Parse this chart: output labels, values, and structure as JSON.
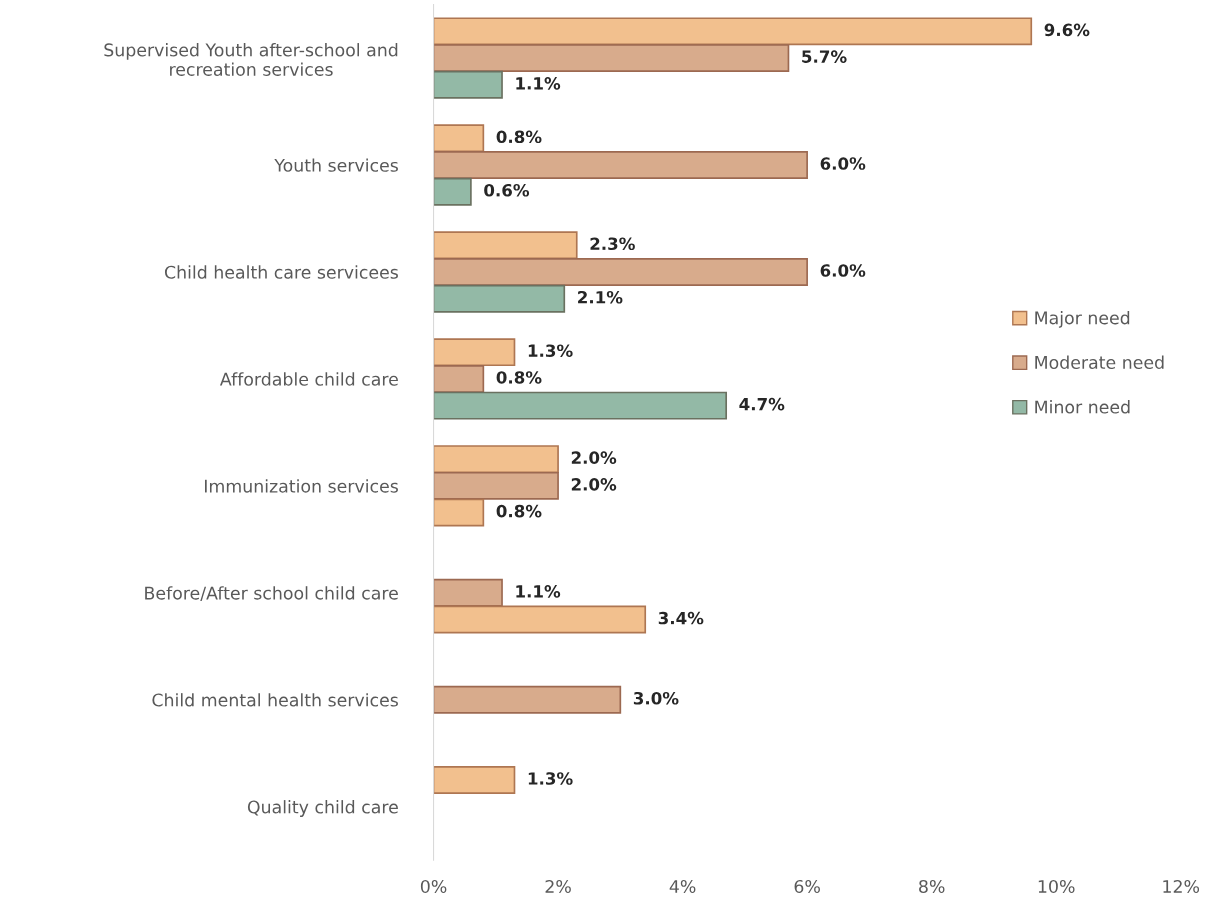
{
  "chart_data": {
    "type": "bar",
    "orientation": "horizontal",
    "categories": [
      "Supervised Youth after-school and\nrecreation services",
      "Youth services",
      "Child health care servicees",
      "Affordable child care",
      "Immunization services",
      "Before/After school child care",
      "Child mental health services",
      "Quality child care"
    ],
    "series": [
      {
        "name": "Major need",
        "color": "#f2c08e",
        "values": [
          9.6,
          0.8,
          2.3,
          1.3,
          2.0,
          null,
          null,
          1.3
        ],
        "value_labels": [
          "9.6%",
          "0.8%",
          "2.3%",
          "1.3%",
          "2.0%",
          null,
          null,
          "1.3%"
        ]
      },
      {
        "name": "Moderate need",
        "color": "#d8ab8c",
        "values": [
          5.7,
          6.0,
          6.0,
          0.8,
          2.0,
          1.1,
          3.0,
          null
        ],
        "value_labels": [
          "5.7%",
          "6.0%",
          "6.0%",
          "0.8%",
          "2.0%",
          "1.1%",
          "3.0%",
          null
        ]
      },
      {
        "name": "Minor need",
        "color": "#93b9a6",
        "colors": [
          "#93b9a6",
          "#93b9a6",
          "#93b9a6",
          "#93b9a6",
          "#f2c08e",
          "#f2c08e",
          "#93b9a6",
          "#93b9a6"
        ],
        "values": [
          1.1,
          0.6,
          2.1,
          4.7,
          0.8,
          3.4,
          null,
          null
        ],
        "value_labels": [
          "1.1%",
          "0.6%",
          "2.1%",
          "4.7%",
          "0.8%",
          "3.4%",
          null,
          null
        ]
      }
    ],
    "xlim": [
      0,
      12
    ],
    "xticks": [
      {
        "value": 0,
        "label": "0%"
      },
      {
        "value": 2,
        "label": "2%"
      },
      {
        "value": 4,
        "label": "4%"
      },
      {
        "value": 6,
        "label": "6%"
      },
      {
        "value": 8,
        "label": "8%"
      },
      {
        "value": 10,
        "label": "10%"
      },
      {
        "value": 12,
        "label": "12%"
      }
    ],
    "grid": false,
    "legend": "right"
  }
}
